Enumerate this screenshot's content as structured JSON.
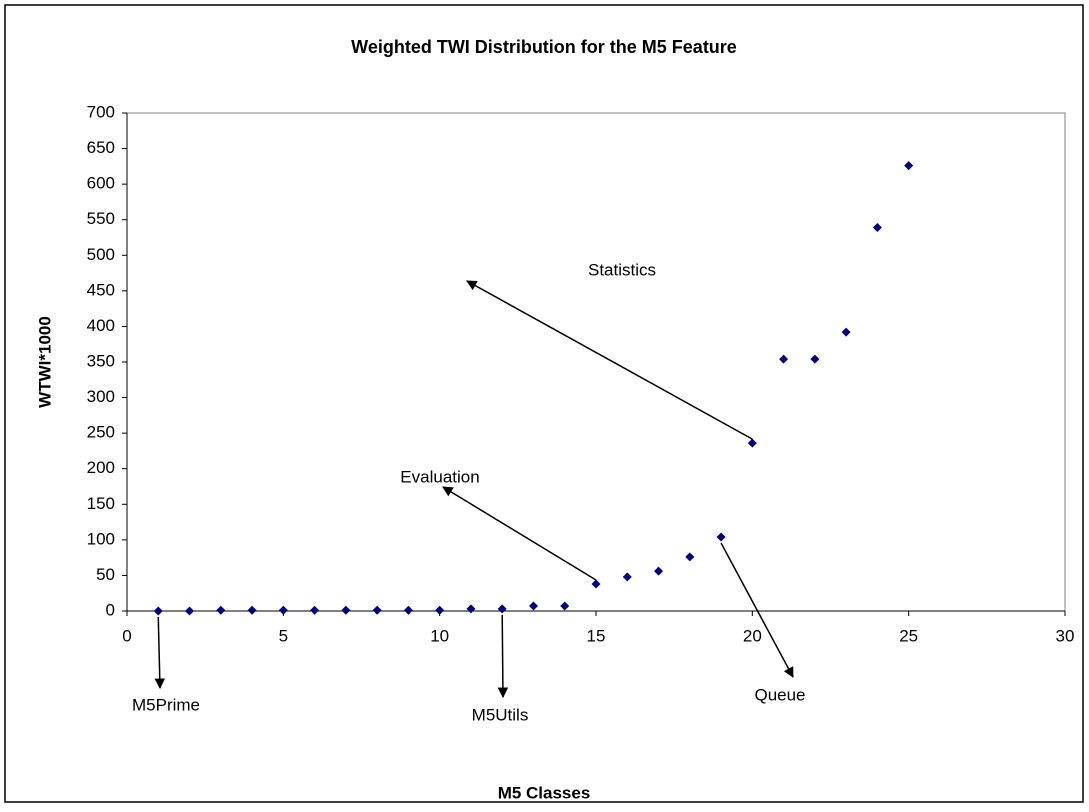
{
  "chart_data": {
    "type": "scatter",
    "title": "Weighted TWI Distribution for the M5 Feature",
    "x_label": "M5 Classes",
    "y_label": "WTWI*1000",
    "x": [
      1,
      2,
      3,
      4,
      5,
      6,
      7,
      8,
      9,
      10,
      11,
      12,
      13,
      14,
      15,
      16,
      17,
      18,
      19,
      20,
      21,
      22,
      23,
      24,
      25
    ],
    "series": [
      {
        "name": "WTWI",
        "color": "#000080",
        "values": [
          0,
          0,
          1,
          1,
          1,
          1,
          1,
          1,
          1,
          1,
          3,
          3,
          7,
          7,
          38,
          48,
          56,
          76,
          104,
          236,
          354,
          354,
          392,
          539,
          626
        ]
      }
    ],
    "xlim": [
      0,
      30
    ],
    "xticks": [
      0,
      5,
      10,
      15,
      20,
      25,
      30
    ],
    "ylim": [
      0,
      700
    ],
    "yticks": [
      0,
      50,
      100,
      150,
      200,
      250,
      300,
      350,
      400,
      450,
      500,
      550,
      600,
      650,
      700
    ],
    "grid": false,
    "annotations": [
      "M5Prime",
      "M5Utils",
      "Evaluation",
      "Statistics",
      "Queue"
    ]
  }
}
